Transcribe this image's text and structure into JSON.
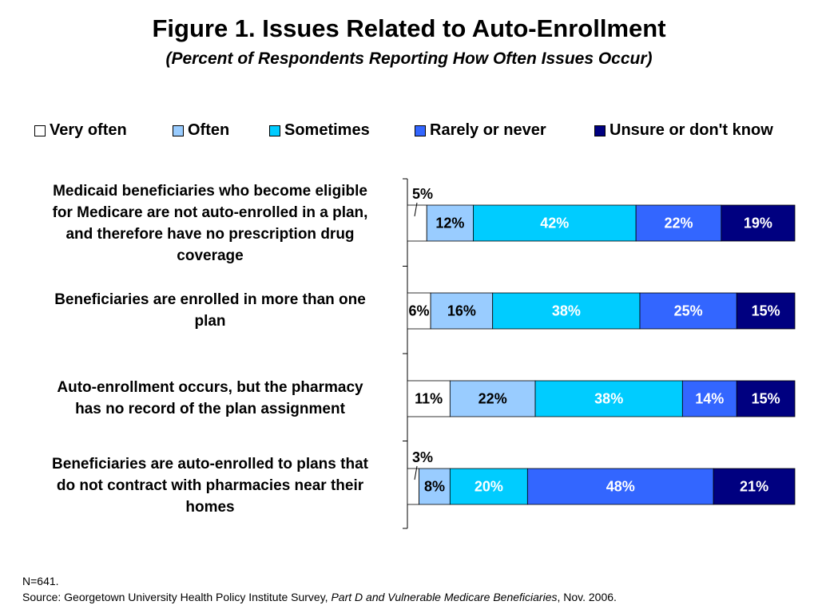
{
  "chart_data": {
    "type": "bar",
    "orientation": "horizontal",
    "stacked": true,
    "title": "Figure 1. Issues Related to Auto-Enrollment",
    "subtitle": "(Percent of Respondents Reporting How Often Issues Occur)",
    "legend_position": "top",
    "xlim": [
      0,
      100
    ],
    "categories": [
      "Medicaid beneficiaries who become eligible for Medicare are not auto-enrolled in a plan, and therefore have no prescription drug coverage",
      "Beneficiaries are enrolled in more than one plan",
      "Auto-enrollment occurs, but the pharmacy has no record of the plan assignment",
      "Beneficiaries are auto-enrolled to plans that do not contract with pharmacies near their homes"
    ],
    "category_lines": [
      [
        "Medicaid beneficiaries who become eligible",
        "for Medicare are not auto-enrolled in a plan,",
        "and therefore have no prescription drug",
        "coverage"
      ],
      [
        "Beneficiaries are enrolled in more than one",
        "plan"
      ],
      [
        "Auto-enrollment occurs, but the pharmacy",
        "has no record of the plan assignment"
      ],
      [
        "Beneficiaries are auto-enrolled to plans that",
        "do not contract with pharmacies near their",
        "homes"
      ]
    ],
    "series": [
      {
        "name": "Very often",
        "color": "#ffffff",
        "label_color": "#000000",
        "values": [
          5,
          6,
          11,
          3
        ],
        "labels": [
          "5%",
          "6%",
          "11%",
          "3%"
        ]
      },
      {
        "name": "Often",
        "color": "#99ccff",
        "label_color": "#000000",
        "values": [
          12,
          16,
          22,
          8
        ],
        "labels": [
          "12%",
          "16%",
          "22%",
          "8%"
        ]
      },
      {
        "name": "Sometimes",
        "color": "#00ccff",
        "label_color": "#ffffff",
        "values": [
          42,
          38,
          38,
          20
        ],
        "labels": [
          "42%",
          "38%",
          "38%",
          "20%"
        ]
      },
      {
        "name": "Rarely or never",
        "color": "#3366ff",
        "label_color": "#ffffff",
        "values": [
          22,
          25,
          14,
          48
        ],
        "labels": [
          "22%",
          "25%",
          "14%",
          "48%"
        ]
      },
      {
        "name": "Unsure or don't know",
        "color": "#000080",
        "label_color": "#ffffff",
        "values": [
          19,
          15,
          15,
          21
        ],
        "labels": [
          "19%",
          "15%",
          "15%",
          "21%"
        ]
      }
    ]
  },
  "footer": {
    "n": "N=641.",
    "source_prefix": "Source: Georgetown University Health Policy Institute Survey, ",
    "source_title": "Part D and Vulnerable Medicare Beneficiaries",
    "source_suffix": ", Nov. 2006."
  }
}
